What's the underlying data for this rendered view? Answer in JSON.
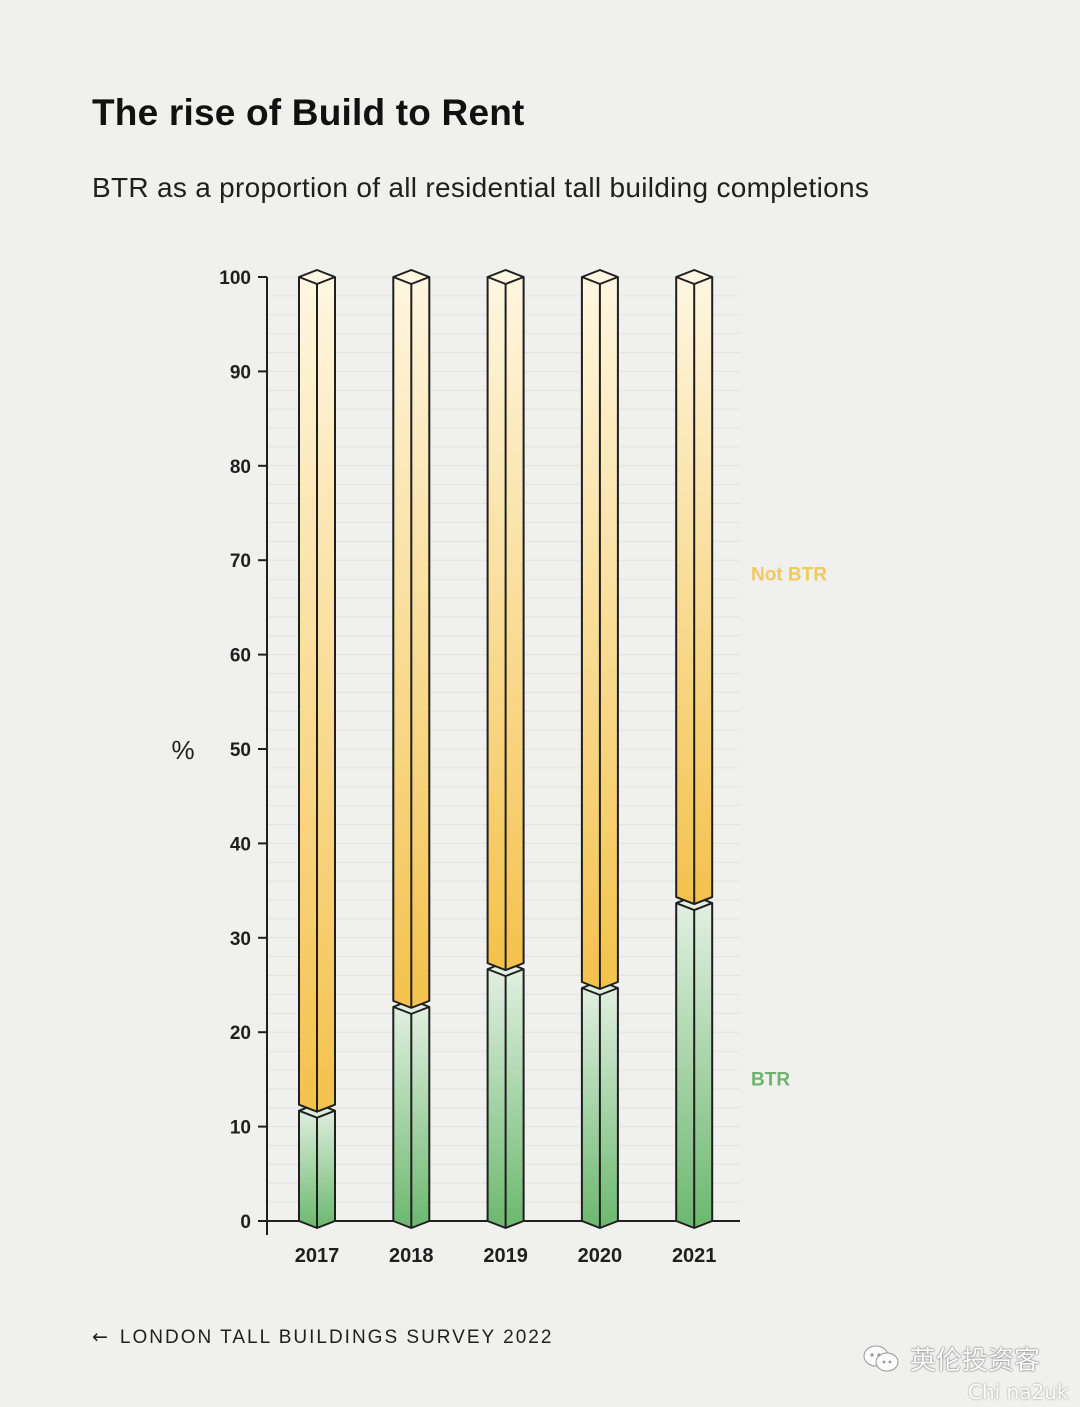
{
  "header": {
    "title": "The rise of Build to Rent",
    "subtitle": "BTR as a proportion of all residential tall building completions"
  },
  "source": {
    "arrow": "←",
    "label": "LONDON TALL BUILDINGS SURVEY 2022"
  },
  "watermark": {
    "text": "英伦投资客",
    "sub": "Chi na2uk"
  },
  "colors": {
    "btr_top": "#e4f1e4",
    "btr_bottom": "#6cb86e",
    "not_btr_top": "#fef7e2",
    "not_btr_bottom": "#f4c24c",
    "btr_label": "#6ab46c",
    "not_btr_label": "#f2c95e",
    "outline": "#1f1f1f",
    "gridline": "#e3e3e1"
  },
  "chart_data": {
    "type": "bar",
    "stacked": true,
    "categories": [
      "2017",
      "2018",
      "2019",
      "2020",
      "2021"
    ],
    "series": [
      {
        "name": "BTR",
        "values": [
          12,
          23,
          27,
          25,
          34
        ]
      },
      {
        "name": "Not BTR",
        "values": [
          88,
          77,
          73,
          75,
          66
        ]
      }
    ],
    "ylabel": "%",
    "ylim": [
      0,
      100
    ],
    "yticks": [
      0,
      10,
      20,
      30,
      40,
      50,
      60,
      70,
      80,
      90,
      100
    ],
    "grid": true,
    "legend": "right, labels beside bars"
  }
}
